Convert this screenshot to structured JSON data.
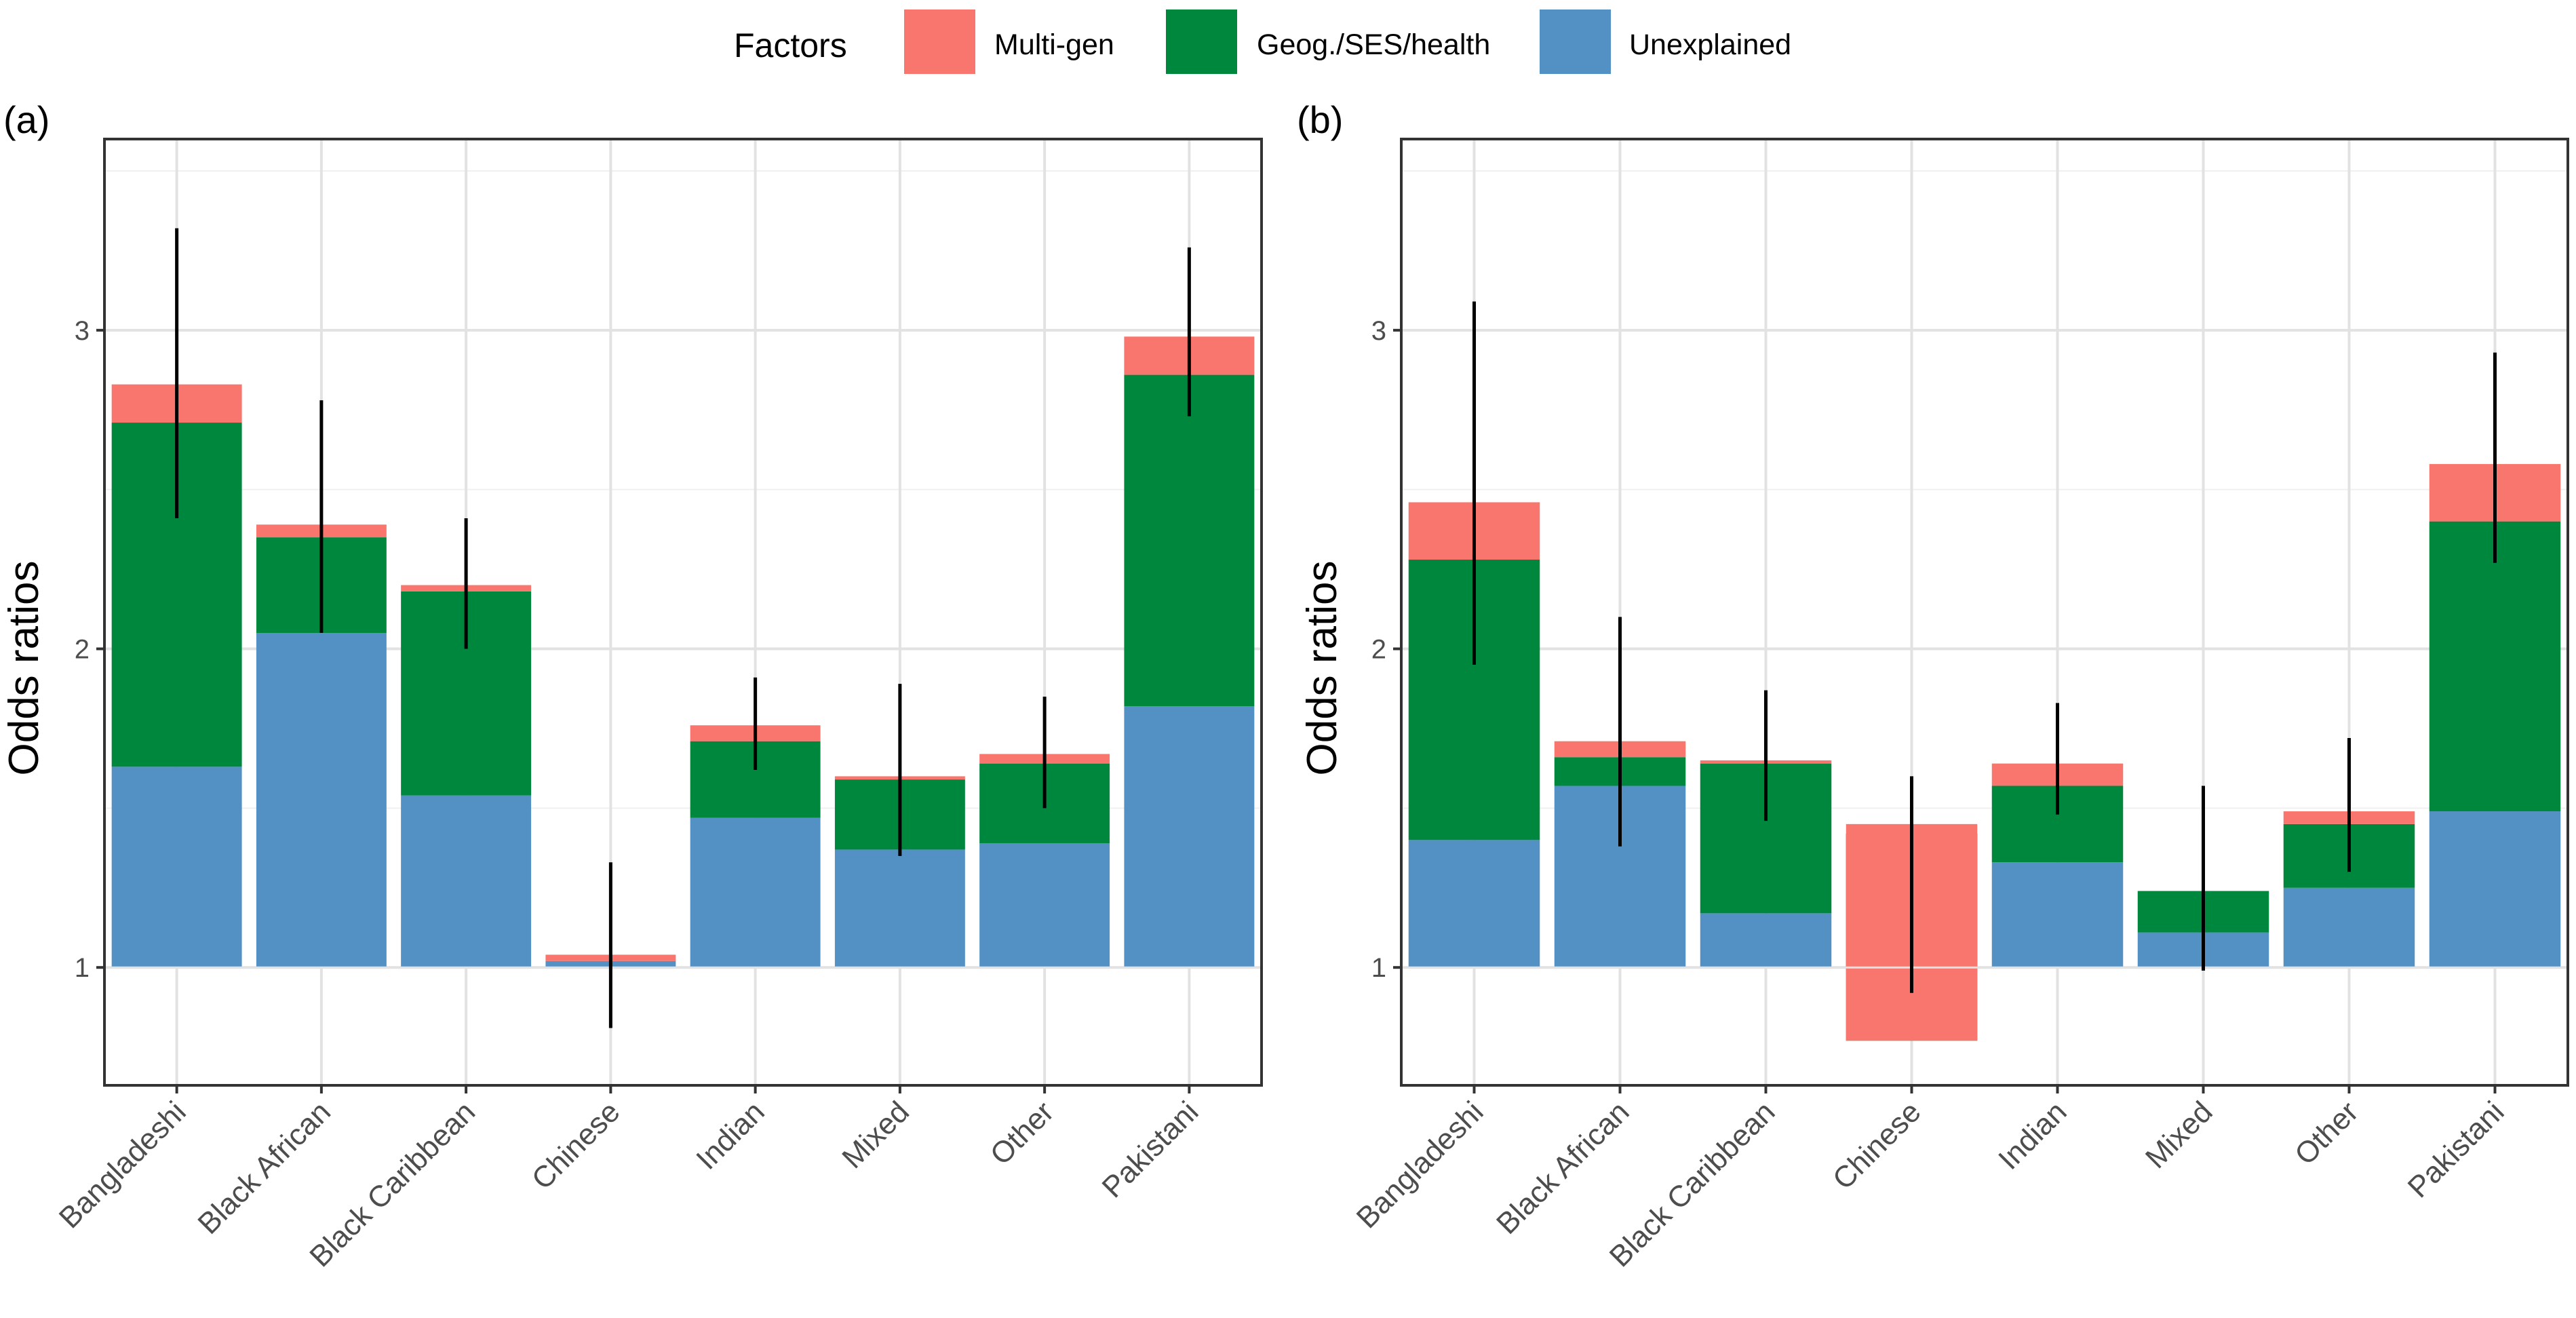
{
  "legend": {
    "title": "Factors",
    "items": [
      {
        "label": "Multi-gen",
        "color": "#F8766D"
      },
      {
        "label": "Geog./SES/health",
        "color": "#00873E"
      },
      {
        "label": "Unexplained",
        "color": "#5390C4"
      }
    ]
  },
  "chart_data": [
    {
      "type": "bar",
      "panel": "(a)",
      "ylabel": "Odds ratios",
      "xlabel": "",
      "ylim": [
        0.63,
        3.6
      ],
      "baseline": 1,
      "yticks": [
        1,
        2,
        3
      ],
      "grid": true,
      "categories": [
        "Bangladeshi",
        "Black African",
        "Black Caribbean",
        "Chinese",
        "Indian",
        "Mixed",
        "Other",
        "Pakistani"
      ],
      "series": [
        {
          "name": "Unexplained",
          "values": [
            1.63,
            2.05,
            1.54,
            1.02,
            1.47,
            1.37,
            1.39,
            1.82
          ]
        },
        {
          "name": "Geog./SES/health",
          "values": [
            2.71,
            2.35,
            2.18,
            1.02,
            1.71,
            1.59,
            1.64,
            2.86
          ]
        },
        {
          "name": "Multi-gen",
          "values": [
            2.83,
            2.39,
            2.2,
            1.04,
            1.76,
            1.6,
            1.67,
            2.98
          ]
        }
      ],
      "ci_lower": [
        2.41,
        2.05,
        2.0,
        0.81,
        1.62,
        1.35,
        1.5,
        2.73
      ],
      "ci_upper": [
        3.32,
        2.78,
        2.41,
        1.33,
        1.91,
        1.89,
        1.85,
        3.26
      ]
    },
    {
      "type": "bar",
      "panel": "(b)",
      "ylabel": "Odds ratios",
      "xlabel": "",
      "ylim": [
        0.63,
        3.6
      ],
      "baseline": 1,
      "yticks": [
        1,
        2,
        3
      ],
      "grid": true,
      "categories": [
        "Bangladeshi",
        "Black African",
        "Black Caribbean",
        "Chinese",
        "Indian",
        "Mixed",
        "Other",
        "Pakistani"
      ],
      "series": [
        {
          "name": "Unexplained",
          "values": [
            1.4,
            1.57,
            1.17,
            1.42,
            1.33,
            1.11,
            1.25,
            1.49
          ]
        },
        {
          "name": "Geog./SES/health",
          "values": [
            2.28,
            1.66,
            1.64,
            0.77,
            1.57,
            1.24,
            1.45,
            2.4
          ]
        },
        {
          "name": "Multi-gen",
          "values": [
            2.46,
            1.71,
            1.65,
            1.45,
            1.64,
            1.24,
            1.49,
            2.58
          ]
        }
      ],
      "ci_lower": [
        1.95,
        1.38,
        1.46,
        0.92,
        1.48,
        0.99,
        1.3,
        2.27
      ],
      "ci_upper": [
        3.09,
        2.1,
        1.87,
        1.6,
        1.83,
        1.57,
        1.72,
        2.93
      ]
    }
  ]
}
